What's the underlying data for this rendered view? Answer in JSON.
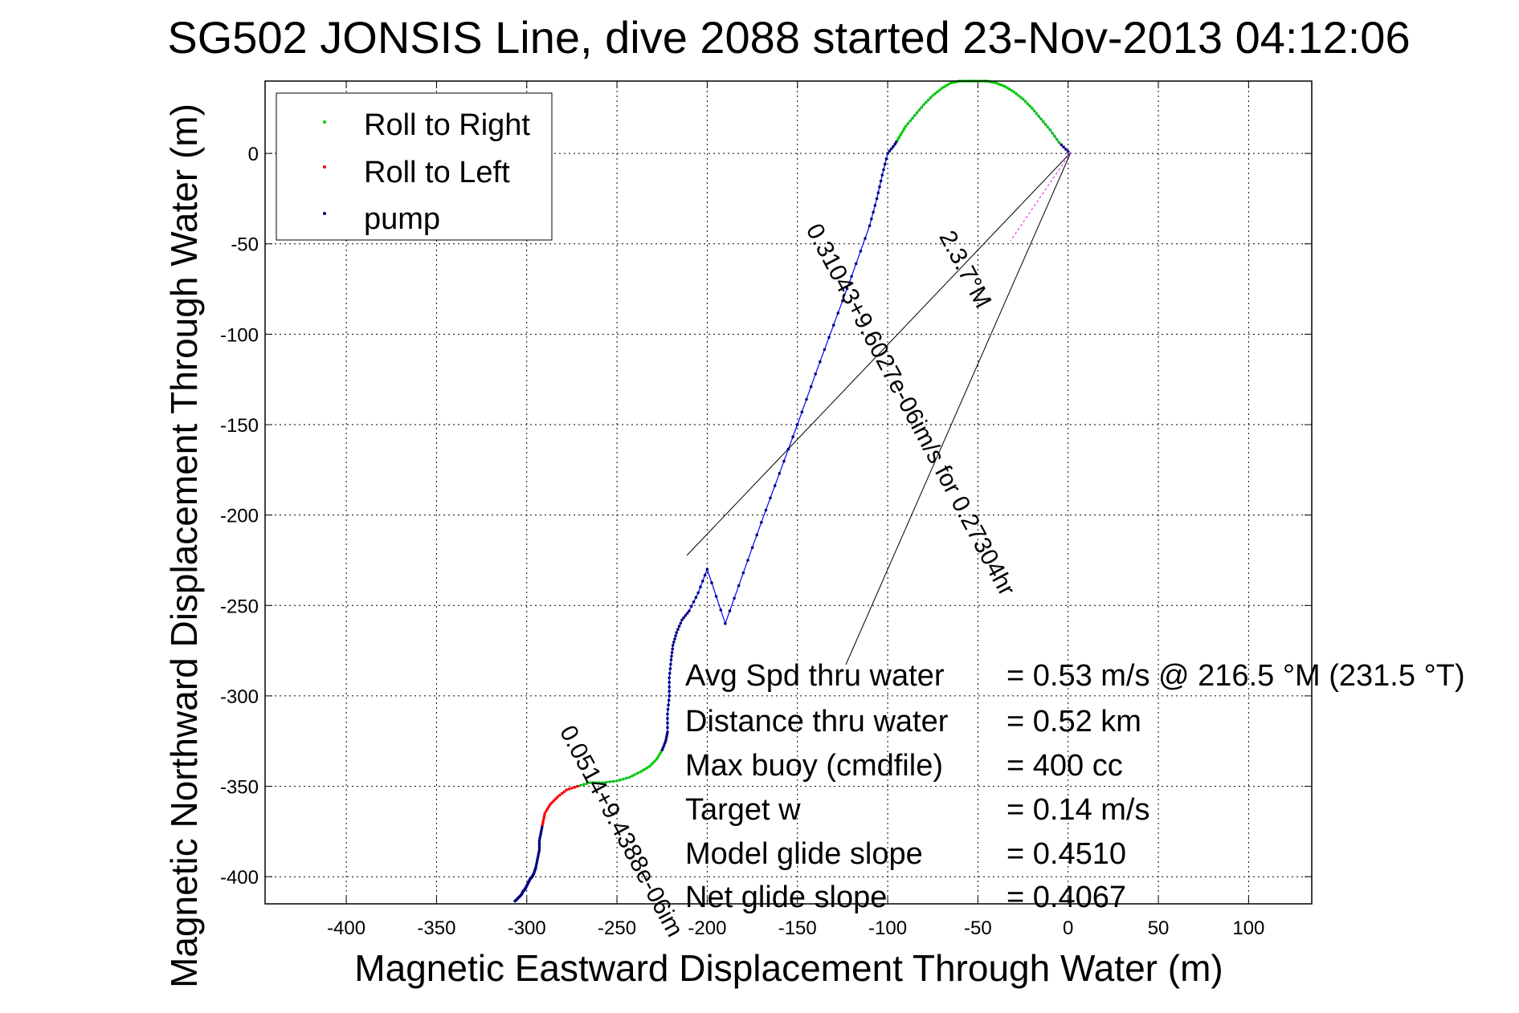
{
  "chart_data": {
    "type": "line",
    "title": "SG502 JONSIS Line, dive 2088 started 23-Nov-2013 04:12:06",
    "xlabel": "Magnetic Eastward Displacement Through Water (m)",
    "ylabel": "Magnetic Northward Displacement Through Water (m)",
    "xlim": [
      -445,
      135
    ],
    "ylim": [
      -415,
      40
    ],
    "x_ticks": [
      -400,
      -350,
      -300,
      -250,
      -200,
      -150,
      -100,
      -50,
      0,
      50,
      100
    ],
    "y_ticks": [
      -400,
      -350,
      -300,
      -250,
      -200,
      -150,
      -100,
      -50,
      0
    ],
    "x_tick_labels": [
      "-400",
      "-350",
      "-300",
      "-250",
      "-200",
      "-150",
      "-100",
      "-50",
      "0",
      "50",
      "100"
    ],
    "y_tick_labels": [
      "-400",
      "-350",
      "-300",
      "-250",
      "-200",
      "-150",
      "-100",
      "-50",
      "0"
    ],
    "grid": true,
    "legend_position": "top-left",
    "legend": [
      {
        "name": "Roll to Right",
        "color": "#00cc00"
      },
      {
        "name": "Roll to Left",
        "color": "#ff0000"
      },
      {
        "name": "pump",
        "color": "#000080"
      }
    ],
    "track": {
      "color": "#0000ff",
      "x": [
        0,
        -5,
        -10,
        -15,
        -20,
        -25,
        -30,
        -35,
        -40,
        -45,
        -50,
        -55,
        -60,
        -65,
        -70,
        -75,
        -80,
        -85,
        -90,
        -93,
        -96,
        -100,
        -103,
        -106,
        -110,
        -120,
        -130,
        -140,
        -150,
        -160,
        -170,
        -180,
        -190,
        -200,
        -205,
        -210,
        -214,
        -217,
        -219,
        -220,
        -221,
        -221,
        -222,
        -222,
        -223,
        -225,
        -228,
        -232,
        -237,
        -243,
        -250,
        -258,
        -265,
        -272,
        -278,
        -283,
        -287,
        -290,
        -291,
        -292,
        -293,
        -293,
        -294,
        -295,
        -296,
        -297,
        -298,
        -299,
        -300,
        -301,
        -302,
        -303,
        -305,
        -307
      ],
      "y": [
        1,
        6,
        13,
        19,
        25,
        30,
        34,
        37,
        39,
        40,
        40,
        40,
        40,
        39,
        36,
        32,
        27,
        21,
        15,
        10,
        5,
        0,
        -12,
        -25,
        -40,
        -68,
        -95,
        -122,
        -150,
        -177,
        -204,
        -232,
        -260,
        -230,
        -243,
        -253,
        -258,
        -265,
        -272,
        -280,
        -290,
        -300,
        -310,
        -320,
        -325,
        -330,
        -335,
        -339,
        -342,
        -345,
        -347,
        -348,
        -348,
        -350,
        -352,
        -356,
        -360,
        -365,
        -370,
        -375,
        -380,
        -385,
        -390,
        -395,
        -398,
        -400,
        -401,
        -403,
        -405,
        -407,
        -408,
        -410,
        -412,
        -414
      ]
    },
    "labels": [
      "2.3.7°M",
      "0.31043+9.6027e-06im/s for 0.27304hr",
      "0.0514+9.4388e-06im"
    ],
    "annotations": [
      {
        "label": "Avg Spd thru water",
        "value": "=  0.53 m/s @ 216.5 °M (231.5 °T)"
      },
      {
        "label": "Distance thru water",
        "value": "=  0.52 km"
      },
      {
        "label": "Max buoy (cmdfile)",
        "value": "= 400 cc"
      },
      {
        "label": "Target w",
        "value": "= 0.14 m/s"
      },
      {
        "label": "Model glide slope",
        "value": "= 0.4510"
      },
      {
        "label": "Net glide slope",
        "value": "= 0.4067"
      }
    ]
  }
}
